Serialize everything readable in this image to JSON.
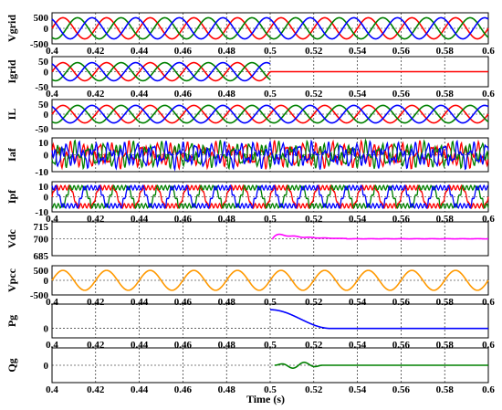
{
  "figure": {
    "xlabel": "Time (s)",
    "x_ticks": [
      "0.4",
      "0.42",
      "0.44",
      "0.46",
      "0.48",
      "0.5",
      "0.52",
      "0.54",
      "0.56",
      "0.58",
      "0.6"
    ],
    "colors": {
      "red": "#ff0000",
      "green": "#008000",
      "blue": "#0000ff",
      "magenta": "#ff00ff",
      "orange": "#ff9900",
      "axis": "#000000"
    }
  },
  "chart_data": [
    {
      "type": "line",
      "ylabel": "Vgrid",
      "xlim": [
        0.4,
        0.6
      ],
      "ylim": [
        -500,
        500
      ],
      "yticks": [
        "500",
        "0",
        "-500"
      ],
      "x_tick_labels_shown": true,
      "series": [
        {
          "color": "#ff0000",
          "kind": "sine",
          "amplitude": 340,
          "frequency_hz": 50,
          "phase_deg": 0
        },
        {
          "color": "#008000",
          "kind": "sine",
          "amplitude": 340,
          "frequency_hz": 50,
          "phase_deg": -120
        },
        {
          "color": "#0000ff",
          "kind": "sine",
          "amplitude": 340,
          "frequency_hz": 50,
          "phase_deg": 120
        }
      ]
    },
    {
      "type": "line",
      "ylabel": "Igrid",
      "xlim": [
        0.4,
        0.6
      ],
      "ylim": [
        -50,
        50
      ],
      "yticks": [
        "50",
        "0",
        "-50"
      ],
      "x_tick_labels_shown": true,
      "series": [
        {
          "color": "#ff0000",
          "kind": "sine",
          "amplitude": 30,
          "frequency_hz": 50,
          "phase_deg": 0,
          "until_x": 0.5
        },
        {
          "color": "#008000",
          "kind": "sine",
          "amplitude": 30,
          "frequency_hz": 50,
          "phase_deg": -120,
          "until_x": 0.5
        },
        {
          "color": "#0000ff",
          "kind": "sine",
          "amplitude": 30,
          "frequency_hz": 50,
          "phase_deg": 120,
          "until_x": 0.5
        },
        {
          "color": "#ff0000",
          "kind": "const",
          "value": 0,
          "from_x": 0.5
        }
      ]
    },
    {
      "type": "line",
      "ylabel": "IL",
      "xlim": [
        0.4,
        0.6
      ],
      "ylim": [
        -50,
        50
      ],
      "yticks": [
        "50",
        "0",
        "-50"
      ],
      "x_tick_labels_shown": false,
      "series": [
        {
          "color": "#ff0000",
          "kind": "sine",
          "amplitude": 30,
          "frequency_hz": 50,
          "phase_deg": 0
        },
        {
          "color": "#008000",
          "kind": "sine",
          "amplitude": 30,
          "frequency_hz": 50,
          "phase_deg": -120
        },
        {
          "color": "#0000ff",
          "kind": "sine",
          "amplitude": 30,
          "frequency_hz": 50,
          "phase_deg": 120
        }
      ]
    },
    {
      "type": "line",
      "ylabel": "Iaf",
      "xlim": [
        0.4,
        0.6
      ],
      "ylim": [
        -10,
        10
      ],
      "yticks": [
        "10",
        "0",
        "-10"
      ],
      "x_tick_labels_shown": false,
      "series": [
        {
          "color": "#ff0000",
          "kind": "harmonic",
          "amplitude": 7,
          "frequency_hz": 150,
          "phase_deg": 0
        },
        {
          "color": "#008000",
          "kind": "harmonic",
          "amplitude": 7,
          "frequency_hz": 150,
          "phase_deg": -120
        },
        {
          "color": "#0000ff",
          "kind": "harmonic",
          "amplitude": 7,
          "frequency_hz": 150,
          "phase_deg": 120
        }
      ]
    },
    {
      "type": "line",
      "ylabel": "Ipf",
      "xlim": [
        0.4,
        0.6
      ],
      "ylim": [
        -10,
        10
      ],
      "yticks": [
        "10",
        "0",
        "-10"
      ],
      "x_tick_labels_shown": true,
      "series": [
        {
          "color": "#ff0000",
          "kind": "square",
          "amplitude": 6,
          "frequency_hz": 50,
          "phase_deg": 0
        },
        {
          "color": "#008000",
          "kind": "square",
          "amplitude": 6,
          "frequency_hz": 50,
          "phase_deg": -120
        },
        {
          "color": "#0000ff",
          "kind": "square",
          "amplitude": 6,
          "frequency_hz": 50,
          "phase_deg": 120
        }
      ]
    },
    {
      "type": "line",
      "ylabel": "Vdc",
      "xlim": [
        0.4,
        0.6
      ],
      "ylim": [
        685,
        715
      ],
      "yticks": [
        "715",
        "700",
        "685"
      ],
      "x_tick_labels_shown": false,
      "series": [
        {
          "color": "#ff00ff",
          "kind": "step_response",
          "base": 700,
          "from_x": 0.501,
          "peak": 4,
          "settle_x": 0.535,
          "ripple": 0.5
        }
      ]
    },
    {
      "type": "line",
      "ylabel": "Vpcc",
      "xlim": [
        0.4,
        0.6
      ],
      "ylim": [
        -500,
        500
      ],
      "yticks": [
        "500",
        "0",
        "-500"
      ],
      "x_tick_labels_shown": true,
      "series": [
        {
          "color": "#ff9900",
          "kind": "sine",
          "amplitude": 340,
          "frequency_hz": 50,
          "phase_deg": 0
        }
      ]
    },
    {
      "type": "line",
      "ylabel": "Pg",
      "xlim": [
        0.4,
        0.6
      ],
      "ylim": [
        -0.5,
        1.3
      ],
      "yticks": [
        "0"
      ],
      "x_tick_labels_shown": true,
      "series": [
        {
          "color": "#0000ff",
          "kind": "ramp_down",
          "high": 1,
          "low": 0,
          "from_x": 0.5,
          "to_x": 0.528
        }
      ]
    },
    {
      "type": "line",
      "ylabel": "Qg",
      "xlim": [
        0.4,
        0.6
      ],
      "ylim": [
        -1,
        1
      ],
      "yticks": [
        "0"
      ],
      "x_tick_labels_shown": true,
      "series": [
        {
          "color": "#008000",
          "kind": "transient_wiggle",
          "base": 0,
          "from_x": 0.502,
          "to_x": 0.524,
          "amplitude": 0.18
        }
      ]
    }
  ]
}
